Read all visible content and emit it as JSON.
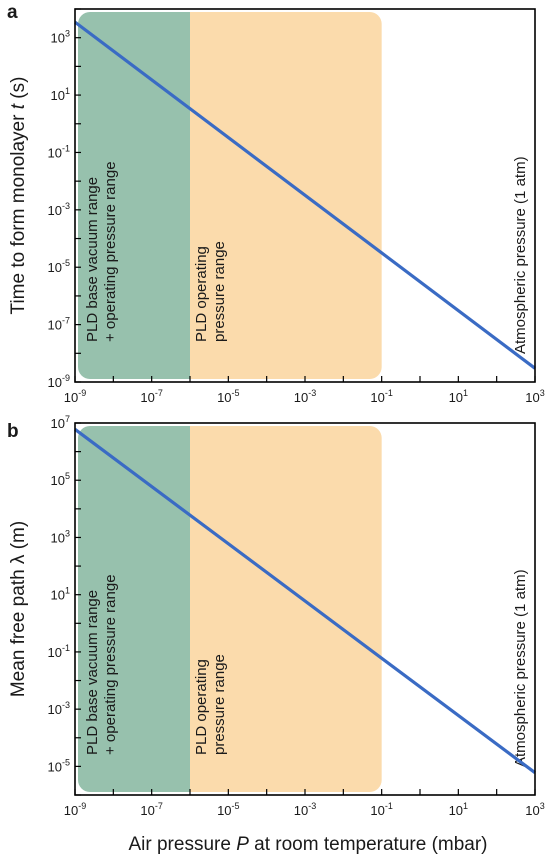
{
  "figure": {
    "xlabel_parts": [
      "Air pressure ",
      "P",
      " at room temperature (mbar)"
    ],
    "colors": {
      "line": "#3a6bc4",
      "base_region": "#97c1ad",
      "operating_region": "#fbdbac",
      "axis": "#000000"
    }
  },
  "chart_data": [
    {
      "panel_label": "a",
      "type": "line",
      "x_scale": "log",
      "y_scale": "log",
      "xlim": [
        1e-09,
        1000
      ],
      "ylim": [
        1e-09,
        10000.0
      ],
      "xlabel": "",
      "ylabel_parts": [
        "Time to form monolayer ",
        "t",
        " (s)"
      ],
      "x_ticks": [
        {
          "value": 1e-09,
          "mant": "10",
          "exp": "-9"
        },
        {
          "value": 1e-07,
          "mant": "10",
          "exp": "-7"
        },
        {
          "value": 1e-05,
          "mant": "10",
          "exp": "-5"
        },
        {
          "value": 0.001,
          "mant": "10",
          "exp": "-3"
        },
        {
          "value": 0.1,
          "mant": "10",
          "exp": "-1"
        },
        {
          "value": 10,
          "mant": "10",
          "exp": "1"
        },
        {
          "value": 1000,
          "mant": "10",
          "exp": "3"
        }
      ],
      "y_ticks": [
        {
          "value": 1e-09,
          "mant": "10",
          "exp": "-9"
        },
        {
          "value": 1e-07,
          "mant": "10",
          "exp": "-7"
        },
        {
          "value": 1e-05,
          "mant": "10",
          "exp": "-5"
        },
        {
          "value": 0.001,
          "mant": "10",
          "exp": "-3"
        },
        {
          "value": 0.1,
          "mant": "10",
          "exp": "-1"
        },
        {
          "value": 10,
          "mant": "10",
          "exp": "1"
        },
        {
          "value": 1000,
          "mant": "10",
          "exp": "3"
        }
      ],
      "series": [
        {
          "x": [
            1e-09,
            1000
          ],
          "y": [
            3500,
            3e-09
          ]
        }
      ],
      "regions": [
        {
          "x0": 1e-09,
          "x1": 1e-06,
          "color": "#97c1ad",
          "label_lines": [
            "PLD base vacuum range",
            "+ operating pressure range"
          ]
        },
        {
          "x0": 1e-06,
          "x1": 0.1,
          "color": "#fbdbac",
          "label_lines": [
            "PLD operating",
            "pressure range"
          ]
        }
      ],
      "annotation": "Atmospheric pressure (1 atm)"
    },
    {
      "panel_label": "b",
      "type": "line",
      "x_scale": "log",
      "y_scale": "log",
      "xlim": [
        1e-09,
        1000
      ],
      "ylim": [
        1e-06,
        10000000.0
      ],
      "xlabel": "Air pressure P at room temperature (mbar)",
      "ylabel_parts": [
        "Mean free path λ (m)"
      ],
      "x_ticks": [
        {
          "value": 1e-09,
          "mant": "10",
          "exp": "-9"
        },
        {
          "value": 1e-07,
          "mant": "10",
          "exp": "-7"
        },
        {
          "value": 1e-05,
          "mant": "10",
          "exp": "-5"
        },
        {
          "value": 0.001,
          "mant": "10",
          "exp": "-3"
        },
        {
          "value": 0.1,
          "mant": "10",
          "exp": "-1"
        },
        {
          "value": 10,
          "mant": "10",
          "exp": "1"
        },
        {
          "value": 1000,
          "mant": "10",
          "exp": "3"
        }
      ],
      "y_ticks": [
        {
          "value": 1e-05,
          "mant": "10",
          "exp": "-5"
        },
        {
          "value": 0.001,
          "mant": "10",
          "exp": "-3"
        },
        {
          "value": 0.1,
          "mant": "10",
          "exp": "-1"
        },
        {
          "value": 10,
          "mant": "10",
          "exp": "1"
        },
        {
          "value": 1000,
          "mant": "10",
          "exp": "3"
        },
        {
          "value": 100000.0,
          "mant": "10",
          "exp": "5"
        },
        {
          "value": 10000000.0,
          "mant": "10",
          "exp": "7"
        }
      ],
      "series": [
        {
          "x": [
            1e-09,
            1000
          ],
          "y": [
            6000000.0,
            6e-06
          ]
        }
      ],
      "regions": [
        {
          "x0": 1e-09,
          "x1": 1e-06,
          "color": "#97c1ad",
          "label_lines": [
            "PLD base vacuum range",
            "+ operating pressure range"
          ]
        },
        {
          "x0": 1e-06,
          "x1": 0.1,
          "color": "#fbdbac",
          "label_lines": [
            "PLD operating",
            "pressure range"
          ]
        }
      ],
      "annotation": "Atmospheric pressure (1 atm)"
    }
  ]
}
